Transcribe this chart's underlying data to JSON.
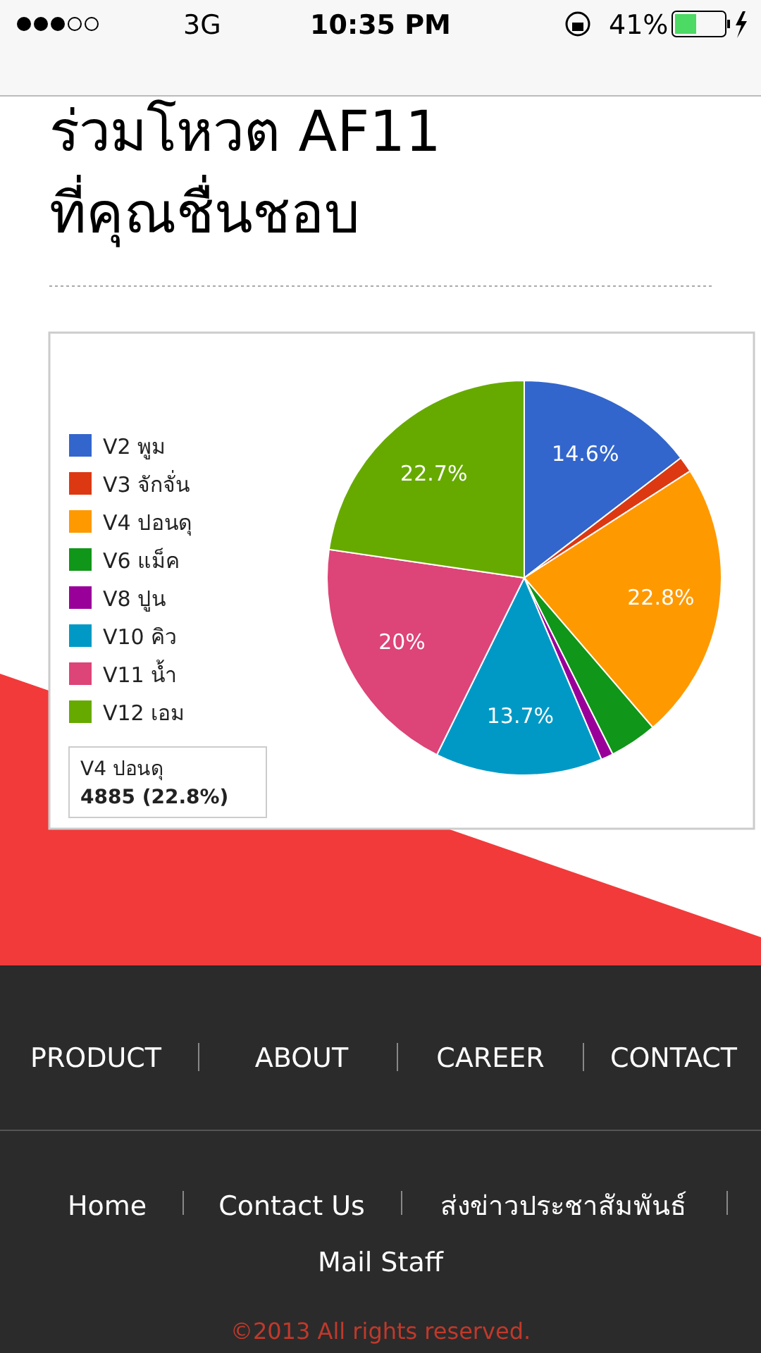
{
  "chart_data": {
    "type": "pie",
    "title": "ร่วมโหวต AF11 ที่คุณชื่นชอบ",
    "categories": [
      "V2 พูม",
      "V3 จักจั่น",
      "V4 ปอนดุ",
      "V6 แม็ค",
      "V8 ปูน",
      "V10 คิว",
      "V11 น้ำ",
      "V12 เอม"
    ],
    "values": [
      14.6,
      1.3,
      22.8,
      3.9,
      1.0,
      13.7,
      20,
      22.7
    ],
    "colors": [
      "#3366cc",
      "#dc3912",
      "#ff9900",
      "#109618",
      "#990099",
      "#0099c6",
      "#dd4477",
      "#66aa00"
    ],
    "value_labels": [
      "14.6%",
      null,
      "22.8%",
      null,
      null,
      "13.7%",
      "20%",
      "22.7%"
    ],
    "legend": "left",
    "annotations": [
      "V4 ปอนดุ",
      "4885 (22.8%)",
      "3G",
      "10:35 PM",
      "41%",
      "PRODUCT",
      "ABOUT",
      "CAREER",
      "CONTACT",
      "Home",
      "Contact Us",
      "ส่งข่าวประชาสัมพันธ์",
      "Mail Staff",
      "©2013 All rights reserved."
    ]
  }
}
